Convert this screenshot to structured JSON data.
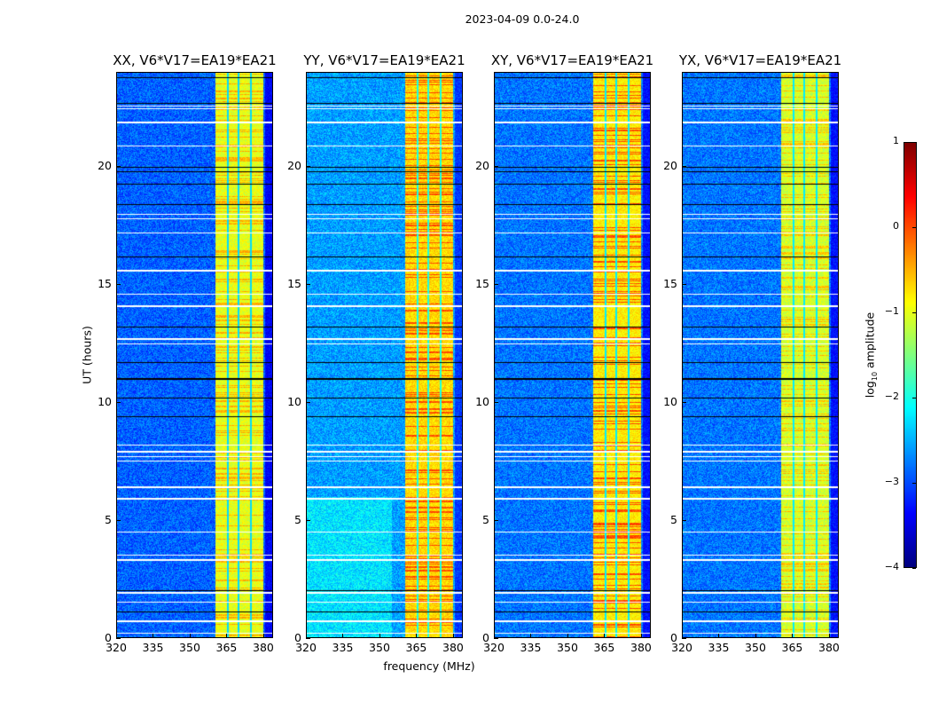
{
  "chart_data": {
    "type": "heatmap",
    "title": "2023-04-09 0.0-24.0",
    "xlabel": "frequency (MHz)",
    "ylabel": "UT (hours)",
    "xlim": [
      320,
      384
    ],
    "ylim": [
      0,
      24
    ],
    "xticks": [
      "320",
      "335",
      "350",
      "365",
      "380"
    ],
    "xtick_values": [
      320,
      335,
      350,
      365,
      380
    ],
    "yticks": [
      "0",
      "5",
      "10",
      "15",
      "20"
    ],
    "ytick_values": [
      0,
      5,
      10,
      15,
      20
    ],
    "panels": [
      {
        "title": "XX, V6*V17=EA19*EA21",
        "background_log_amp": -2.9,
        "band_log_amp": -1.0,
        "peak_log_amp": -0.5
      },
      {
        "title": "YY, V6*V17=EA19*EA21",
        "background_log_amp": -2.6,
        "band_log_amp": -0.7,
        "peak_log_amp": 0.0
      },
      {
        "title": "XY, V6*V17=EA19*EA21",
        "background_log_amp": -2.8,
        "band_log_amp": -0.8,
        "peak_log_amp": 0.0
      },
      {
        "title": "YX, V6*V17=EA19*EA21",
        "background_log_amp": -2.8,
        "band_log_amp": -1.1,
        "peak_log_amp": -0.6
      }
    ],
    "rfi_band_mhz": [
      360.5,
      380
    ],
    "band_gap_mhz": [
      365.5,
      370,
      375
    ],
    "flagged_times_hours": [
      0.2,
      0.7,
      1.5,
      1.9,
      3.3,
      3.5,
      4.5,
      5.9,
      6.4,
      7.5,
      7.7,
      7.9,
      8.2,
      12.5,
      12.7,
      14.1,
      14.6,
      15.6,
      17.2,
      17.8,
      18.0,
      20.9,
      21.9,
      22.5,
      22.6
    ],
    "dropout_times_hours": [
      1.1,
      2.0,
      9.4,
      10.2,
      11.0,
      11.7,
      13.2,
      14.6,
      16.2,
      18.4,
      19.3,
      19.8,
      20.0,
      22.7,
      23.8
    ],
    "colorbar": {
      "label": "log10 amplitude",
      "label_main": "log",
      "label_sub": "10",
      "label_rest": " amplitude",
      "range": [
        -4,
        1
      ],
      "ticks": [
        "1",
        "0",
        "−1",
        "−2",
        "−3",
        "−4"
      ],
      "tick_values": [
        1,
        0,
        -1,
        -2,
        -3,
        -4
      ],
      "colormap": "jet"
    }
  }
}
